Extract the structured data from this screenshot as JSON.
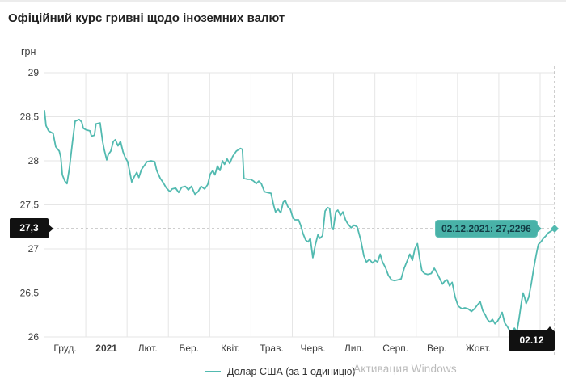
{
  "header": {
    "title": "Офіційний курс гривні щодо іноземних валют"
  },
  "chart_data": {
    "type": "line",
    "title": "Офіційний курс гривні щодо іноземних валют",
    "y_unit": "грн",
    "ylabel": "грн",
    "xlabel": "",
    "ylim": [
      26,
      29
    ],
    "grid": true,
    "legend_position": "bottom-center",
    "y_ticks": [
      {
        "value": 29,
        "label": "29"
      },
      {
        "value": 28.5,
        "label": "28,5"
      },
      {
        "value": 28,
        "label": "28"
      },
      {
        "value": 27.5,
        "label": "27,5"
      },
      {
        "value": 27,
        "label": "27"
      },
      {
        "value": 26.5,
        "label": "26,5"
      },
      {
        "value": 26,
        "label": "26"
      }
    ],
    "x_tick_labels": [
      {
        "label": "Груд.",
        "bold": false
      },
      {
        "label": "2021",
        "bold": true
      },
      {
        "label": "Лют.",
        "bold": false
      },
      {
        "label": "Бер.",
        "bold": false
      },
      {
        "label": "Квіт.",
        "bold": false
      },
      {
        "label": "Трав.",
        "bold": false
      },
      {
        "label": "Черв.",
        "bold": false
      },
      {
        "label": "Лип.",
        "bold": false
      },
      {
        "label": "Серп.",
        "bold": false
      },
      {
        "label": "Вер.",
        "bold": false
      },
      {
        "label": "Жовт.",
        "bold": false
      }
    ],
    "axis_marker_y": "27,3",
    "axis_marker_x": "02.12",
    "tooltip_text": "02.12.2021: 27,2296",
    "last_point": {
      "date": "02.12.2021",
      "value_label": "27,2296",
      "value": 27.2296
    },
    "line_color": "#52bab0",
    "tooltip_color": "#49b2a8",
    "series": [
      {
        "name": "Долар США (за 1 одиницю)",
        "color": "#52bab0",
        "points": [
          [
            0.0,
            28.57
          ],
          [
            0.003,
            28.4
          ],
          [
            0.008,
            28.34
          ],
          [
            0.017,
            28.31
          ],
          [
            0.022,
            28.16
          ],
          [
            0.029,
            28.11
          ],
          [
            0.032,
            28.04
          ],
          [
            0.035,
            27.84
          ],
          [
            0.04,
            27.77
          ],
          [
            0.044,
            27.74
          ],
          [
            0.049,
            27.92
          ],
          [
            0.055,
            28.22
          ],
          [
            0.06,
            28.45
          ],
          [
            0.068,
            28.47
          ],
          [
            0.073,
            28.44
          ],
          [
            0.076,
            28.37
          ],
          [
            0.082,
            28.35
          ],
          [
            0.089,
            28.34
          ],
          [
            0.092,
            28.28
          ],
          [
            0.098,
            28.29
          ],
          [
            0.101,
            28.42
          ],
          [
            0.109,
            28.43
          ],
          [
            0.114,
            28.22
          ],
          [
            0.117,
            28.13
          ],
          [
            0.122,
            28.01
          ],
          [
            0.125,
            28.07
          ],
          [
            0.13,
            28.11
          ],
          [
            0.135,
            28.22
          ],
          [
            0.139,
            28.24
          ],
          [
            0.144,
            28.17
          ],
          [
            0.149,
            28.22
          ],
          [
            0.154,
            28.1
          ],
          [
            0.158,
            28.04
          ],
          [
            0.163,
            27.99
          ],
          [
            0.168,
            27.85
          ],
          [
            0.171,
            27.76
          ],
          [
            0.176,
            27.82
          ],
          [
            0.181,
            27.87
          ],
          [
            0.185,
            27.81
          ],
          [
            0.19,
            27.9
          ],
          [
            0.195,
            27.94
          ],
          [
            0.201,
            27.99
          ],
          [
            0.209,
            28.0
          ],
          [
            0.216,
            27.99
          ],
          [
            0.22,
            27.89
          ],
          [
            0.227,
            27.8
          ],
          [
            0.233,
            27.75
          ],
          [
            0.239,
            27.69
          ],
          [
            0.246,
            27.65
          ],
          [
            0.25,
            27.68
          ],
          [
            0.257,
            27.69
          ],
          [
            0.263,
            27.64
          ],
          [
            0.269,
            27.7
          ],
          [
            0.276,
            27.71
          ],
          [
            0.282,
            27.67
          ],
          [
            0.288,
            27.71
          ],
          [
            0.295,
            27.62
          ],
          [
            0.301,
            27.65
          ],
          [
            0.307,
            27.71
          ],
          [
            0.314,
            27.68
          ],
          [
            0.32,
            27.73
          ],
          [
            0.325,
            27.85
          ],
          [
            0.33,
            27.89
          ],
          [
            0.334,
            27.84
          ],
          [
            0.339,
            27.94
          ],
          [
            0.344,
            27.89
          ],
          [
            0.349,
            28.0
          ],
          [
            0.353,
            27.96
          ],
          [
            0.358,
            28.02
          ],
          [
            0.363,
            27.97
          ],
          [
            0.369,
            28.05
          ],
          [
            0.376,
            28.11
          ],
          [
            0.384,
            28.14
          ],
          [
            0.388,
            28.13
          ],
          [
            0.391,
            27.8
          ],
          [
            0.398,
            27.79
          ],
          [
            0.404,
            27.79
          ],
          [
            0.41,
            27.77
          ],
          [
            0.415,
            27.74
          ],
          [
            0.42,
            27.77
          ],
          [
            0.425,
            27.74
          ],
          [
            0.431,
            27.65
          ],
          [
            0.437,
            27.64
          ],
          [
            0.444,
            27.63
          ],
          [
            0.449,
            27.5
          ],
          [
            0.453,
            27.42
          ],
          [
            0.458,
            27.45
          ],
          [
            0.463,
            27.41
          ],
          [
            0.468,
            27.53
          ],
          [
            0.472,
            27.55
          ],
          [
            0.477,
            27.48
          ],
          [
            0.482,
            27.45
          ],
          [
            0.487,
            27.35
          ],
          [
            0.491,
            27.33
          ],
          [
            0.498,
            27.33
          ],
          [
            0.502,
            27.27
          ],
          [
            0.507,
            27.17
          ],
          [
            0.512,
            27.1
          ],
          [
            0.517,
            27.08
          ],
          [
            0.521,
            27.12
          ],
          [
            0.526,
            26.9
          ],
          [
            0.531,
            27.05
          ],
          [
            0.536,
            27.16
          ],
          [
            0.54,
            27.12
          ],
          [
            0.545,
            27.15
          ],
          [
            0.55,
            27.43
          ],
          [
            0.555,
            27.47
          ],
          [
            0.559,
            27.46
          ],
          [
            0.563,
            27.24
          ],
          [
            0.566,
            27.22
          ],
          [
            0.571,
            27.42
          ],
          [
            0.575,
            27.44
          ],
          [
            0.58,
            27.38
          ],
          [
            0.585,
            27.42
          ],
          [
            0.59,
            27.33
          ],
          [
            0.594,
            27.29
          ],
          [
            0.601,
            27.24
          ],
          [
            0.607,
            27.27
          ],
          [
            0.613,
            27.25
          ],
          [
            0.62,
            27.1
          ],
          [
            0.626,
            26.92
          ],
          [
            0.631,
            26.85
          ],
          [
            0.637,
            26.88
          ],
          [
            0.643,
            26.84
          ],
          [
            0.648,
            26.87
          ],
          [
            0.653,
            26.85
          ],
          [
            0.658,
            26.94
          ],
          [
            0.662,
            26.86
          ],
          [
            0.669,
            26.78
          ],
          [
            0.674,
            26.7
          ],
          [
            0.68,
            26.65
          ],
          [
            0.686,
            26.64
          ],
          [
            0.693,
            26.65
          ],
          [
            0.699,
            26.66
          ],
          [
            0.705,
            26.78
          ],
          [
            0.712,
            26.88
          ],
          [
            0.716,
            26.94
          ],
          [
            0.721,
            26.87
          ],
          [
            0.726,
            27.0
          ],
          [
            0.731,
            27.06
          ],
          [
            0.735,
            26.9
          ],
          [
            0.74,
            26.75
          ],
          [
            0.745,
            26.72
          ],
          [
            0.751,
            26.71
          ],
          [
            0.758,
            26.72
          ],
          [
            0.764,
            26.78
          ],
          [
            0.769,
            26.73
          ],
          [
            0.775,
            26.66
          ],
          [
            0.78,
            26.6
          ],
          [
            0.784,
            26.63
          ],
          [
            0.789,
            26.65
          ],
          [
            0.794,
            26.58
          ],
          [
            0.799,
            26.62
          ],
          [
            0.805,
            26.45
          ],
          [
            0.811,
            26.35
          ],
          [
            0.818,
            26.32
          ],
          [
            0.824,
            26.33
          ],
          [
            0.83,
            26.32
          ],
          [
            0.837,
            26.29
          ],
          [
            0.843,
            26.32
          ],
          [
            0.848,
            26.36
          ],
          [
            0.854,
            26.4
          ],
          [
            0.859,
            26.3
          ],
          [
            0.864,
            26.25
          ],
          [
            0.868,
            26.2
          ],
          [
            0.873,
            26.17
          ],
          [
            0.878,
            26.2
          ],
          [
            0.883,
            26.15
          ],
          [
            0.888,
            26.18
          ],
          [
            0.892,
            26.22
          ],
          [
            0.897,
            26.28
          ],
          [
            0.902,
            26.16
          ],
          [
            0.907,
            26.12
          ],
          [
            0.911,
            26.08
          ],
          [
            0.916,
            26.06
          ],
          [
            0.921,
            26.1
          ],
          [
            0.926,
            26.06
          ],
          [
            0.93,
            26.2
          ],
          [
            0.935,
            26.4
          ],
          [
            0.938,
            26.5
          ],
          [
            0.941,
            26.45
          ],
          [
            0.944,
            26.38
          ],
          [
            0.949,
            26.45
          ],
          [
            0.954,
            26.6
          ],
          [
            0.959,
            26.78
          ],
          [
            0.964,
            26.94
          ],
          [
            0.968,
            27.05
          ],
          [
            0.973,
            27.08
          ],
          [
            0.978,
            27.12
          ],
          [
            0.983,
            27.15
          ],
          [
            0.987,
            27.18
          ],
          [
            0.992,
            27.2
          ],
          [
            1.0,
            27.2296
          ]
        ]
      }
    ]
  },
  "legend": {
    "label": "Долар США (за 1 одиницю)"
  },
  "watermark": {
    "text": "Активация Windows"
  }
}
